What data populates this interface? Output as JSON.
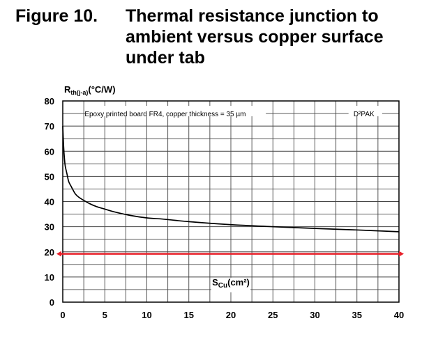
{
  "figure": {
    "label": "Figure 10.",
    "title": "Thermal resistance junction to ambient versus copper surface under tab"
  },
  "chart_data": {
    "type": "line",
    "ylabel": {
      "main": "R",
      "sub": "th(j-a)",
      "unit": "(°C/W)"
    },
    "xlabel": {
      "main": "S",
      "sub": "Cu",
      "unit": "(cm²)"
    },
    "xlim": [
      0,
      40
    ],
    "ylim": [
      0,
      80
    ],
    "x_ticks": [
      0,
      5,
      10,
      15,
      20,
      25,
      30,
      35,
      40
    ],
    "y_ticks": [
      0,
      10,
      20,
      30,
      40,
      50,
      60,
      70,
      80
    ],
    "grid": true,
    "annotations": {
      "condition": "Epoxy printed board FR4, copper thickness = 35 µm",
      "package": "D²PAK"
    },
    "series": [
      {
        "color": "#000000",
        "x": [
          0,
          0.1,
          0.2,
          0.3,
          0.5,
          0.7,
          1,
          1.5,
          2,
          3,
          4,
          5,
          6,
          8,
          10,
          12,
          15,
          20,
          25,
          30,
          35,
          40
        ],
        "y": [
          70,
          62,
          57,
          54,
          51,
          48,
          46,
          43,
          41.5,
          39.5,
          38,
          37,
          36,
          34.5,
          33.5,
          33,
          32,
          30.8,
          30,
          29.3,
          28.7,
          28
        ]
      }
    ],
    "reference_line": {
      "y": 19.2,
      "color": "#e8202a"
    }
  }
}
